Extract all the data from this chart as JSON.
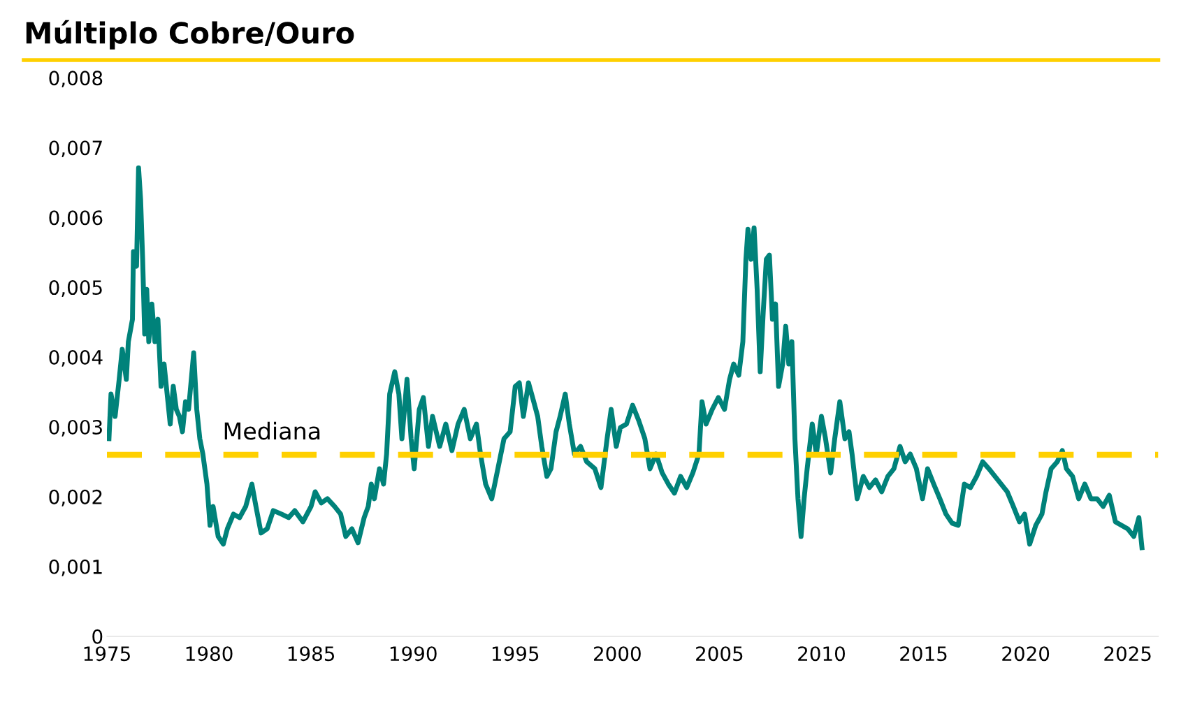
{
  "chart_data": {
    "type": "line",
    "title": "Múltiplo Cobre/Ouro",
    "xlim": [
      1975,
      2026.5
    ],
    "xticks": [
      1975,
      1980,
      1985,
      1990,
      1995,
      2000,
      2005,
      2010,
      2015,
      2020,
      2025
    ],
    "ylim": [
      0,
      0.008
    ],
    "yticks": [
      {
        "value": 0,
        "label": "0"
      },
      {
        "value": 0.001,
        "label": "0,001"
      },
      {
        "value": 0.002,
        "label": "0,002"
      },
      {
        "value": 0.003,
        "label": "0,003"
      },
      {
        "value": 0.004,
        "label": "0,004"
      },
      {
        "value": 0.005,
        "label": "0,005"
      },
      {
        "value": 0.006,
        "label": "0,006"
      },
      {
        "value": 0.007,
        "label": "0,007"
      },
      {
        "value": 0.008,
        "label": "0,008"
      }
    ],
    "grid": false,
    "legend": false,
    "line_style": "solid",
    "ref_lines": [
      {
        "axis": "y",
        "value": 0.0026,
        "label": "Mediana",
        "color": "#ffd000",
        "line_style": "dashed"
      }
    ],
    "series": [
      {
        "color": "#00827a",
        "x": [
          1975.1,
          1975.2,
          1975.4,
          1975.6,
          1975.75,
          1975.95,
          1976.05,
          1976.25,
          1976.3,
          1976.45,
          1976.55,
          1976.65,
          1976.75,
          1976.85,
          1976.95,
          1977.05,
          1977.2,
          1977.35,
          1977.5,
          1977.65,
          1977.8,
          1977.95,
          1978.1,
          1978.25,
          1978.4,
          1978.55,
          1978.7,
          1978.85,
          1979.0,
          1979.25,
          1979.4,
          1979.55,
          1979.7,
          1979.9,
          1980.05,
          1980.2,
          1980.45,
          1980.7,
          1980.9,
          1981.2,
          1981.5,
          1981.8,
          1982.1,
          1982.3,
          1982.55,
          1982.85,
          1983.15,
          1983.55,
          1983.9,
          1984.2,
          1984.6,
          1985.0,
          1985.2,
          1985.5,
          1985.8,
          1986.15,
          1986.45,
          1986.7,
          1987.0,
          1987.3,
          1987.6,
          1987.8,
          1987.95,
          1988.1,
          1988.35,
          1988.55,
          1988.7,
          1988.85,
          1989.1,
          1989.3,
          1989.45,
          1989.7,
          1989.9,
          1990.05,
          1990.3,
          1990.5,
          1990.75,
          1990.95,
          1991.3,
          1991.6,
          1991.9,
          1992.2,
          1992.5,
          1992.8,
          1993.1,
          1993.3,
          1993.55,
          1993.85,
          1994.15,
          1994.45,
          1994.75,
          1995.0,
          1995.2,
          1995.4,
          1995.65,
          1995.85,
          1996.1,
          1996.3,
          1996.55,
          1996.75,
          1997.0,
          1997.2,
          1997.45,
          1997.65,
          1997.9,
          1998.2,
          1998.5,
          1998.9,
          1999.2,
          1999.5,
          1999.7,
          1999.95,
          2000.15,
          2000.45,
          2000.75,
          2001.05,
          2001.35,
          2001.6,
          2001.9,
          2002.2,
          2002.5,
          2002.8,
          2003.1,
          2003.4,
          2003.7,
          2004.0,
          2004.15,
          2004.35,
          2004.65,
          2004.95,
          2005.25,
          2005.5,
          2005.7,
          2005.95,
          2006.15,
          2006.3,
          2006.4,
          2006.55,
          2006.7,
          2006.85,
          2007.0,
          2007.15,
          2007.3,
          2007.45,
          2007.6,
          2007.75,
          2007.9,
          2008.1,
          2008.25,
          2008.4,
          2008.55,
          2008.7,
          2008.85,
          2009.0,
          2009.15,
          2009.3,
          2009.55,
          2009.75,
          2010.0,
          2010.2,
          2010.45,
          2010.65,
          2010.9,
          2011.15,
          2011.35,
          2011.5,
          2011.75,
          2012.05,
          2012.35,
          2012.65,
          2012.95,
          2013.25,
          2013.55,
          2013.85,
          2014.1,
          2014.35,
          2014.65,
          2014.95,
          2015.2,
          2015.5,
          2015.8,
          2016.1,
          2016.4,
          2016.7,
          2017.0,
          2017.3,
          2017.6,
          2017.9,
          2018.2,
          2018.5,
          2018.8,
          2019.1,
          2019.4,
          2019.7,
          2019.95,
          2020.2,
          2020.5,
          2020.8,
          2021.0,
          2021.25,
          2021.55,
          2021.8,
          2022.0,
          2022.3,
          2022.6,
          2022.9,
          2023.2,
          2023.5,
          2023.8,
          2024.1,
          2024.4,
          2024.7,
          2025.0,
          2025.3,
          2025.55,
          2025.7
        ],
        "values": [
          0.00283,
          0.00347,
          0.00315,
          0.00368,
          0.00411,
          0.00368,
          0.00422,
          0.00454,
          0.00551,
          0.0053,
          0.00671,
          0.00626,
          0.0054,
          0.00433,
          0.00497,
          0.00422,
          0.00476,
          0.00422,
          0.00454,
          0.00358,
          0.0039,
          0.00347,
          0.00304,
          0.00358,
          0.00325,
          0.00315,
          0.00293,
          0.00336,
          0.00325,
          0.00406,
          0.00325,
          0.00283,
          0.00261,
          0.00218,
          0.00159,
          0.00186,
          0.00143,
          0.00132,
          0.00154,
          0.00175,
          0.0017,
          0.00186,
          0.00218,
          0.00186,
          0.00148,
          0.00154,
          0.0018,
          0.00175,
          0.0017,
          0.0018,
          0.00164,
          0.00186,
          0.00207,
          0.00191,
          0.00197,
          0.00186,
          0.00175,
          0.00143,
          0.00154,
          0.00134,
          0.0017,
          0.00186,
          0.00218,
          0.00197,
          0.0024,
          0.00218,
          0.00261,
          0.00347,
          0.00379,
          0.00347,
          0.00283,
          0.00368,
          0.00283,
          0.0024,
          0.00325,
          0.00342,
          0.00272,
          0.00315,
          0.00272,
          0.00304,
          0.00266,
          0.00304,
          0.00325,
          0.00283,
          0.00304,
          0.00261,
          0.00218,
          0.00197,
          0.0024,
          0.00283,
          0.00293,
          0.00358,
          0.00363,
          0.00315,
          0.00363,
          0.00342,
          0.00315,
          0.00272,
          0.00229,
          0.0024,
          0.00293,
          0.00315,
          0.00347,
          0.00304,
          0.00261,
          0.00272,
          0.0025,
          0.0024,
          0.00213,
          0.00283,
          0.00325,
          0.00272,
          0.00299,
          0.00304,
          0.00331,
          0.00309,
          0.00283,
          0.0024,
          0.00261,
          0.00234,
          0.00218,
          0.00205,
          0.00229,
          0.00213,
          0.00234,
          0.00261,
          0.00336,
          0.00304,
          0.00325,
          0.00342,
          0.00325,
          0.00368,
          0.0039,
          0.00374,
          0.00422,
          0.0054,
          0.00583,
          0.0054,
          0.00585,
          0.00497,
          0.00379,
          0.00465,
          0.0054,
          0.00546,
          0.00454,
          0.00476,
          0.00358,
          0.0039,
          0.00444,
          0.0039,
          0.00422,
          0.00283,
          0.00197,
          0.00143,
          0.00197,
          0.0024,
          0.00304,
          0.00261,
          0.00315,
          0.00283,
          0.00234,
          0.00283,
          0.00336,
          0.00283,
          0.00293,
          0.00261,
          0.00197,
          0.00229,
          0.00213,
          0.00224,
          0.00207,
          0.00229,
          0.0024,
          0.00272,
          0.0025,
          0.00261,
          0.0024,
          0.00197,
          0.0024,
          0.00218,
          0.00197,
          0.00175,
          0.00162,
          0.00159,
          0.00218,
          0.00213,
          0.00229,
          0.0025,
          0.0024,
          0.00229,
          0.00218,
          0.00207,
          0.00186,
          0.00164,
          0.00175,
          0.00132,
          0.00159,
          0.00175,
          0.00207,
          0.0024,
          0.0025,
          0.00266,
          0.0024,
          0.00229,
          0.00197,
          0.00218,
          0.00197,
          0.00197,
          0.00186,
          0.00202,
          0.00164,
          0.00159,
          0.00154,
          0.00143,
          0.0017,
          0.00127
        ]
      }
    ]
  }
}
